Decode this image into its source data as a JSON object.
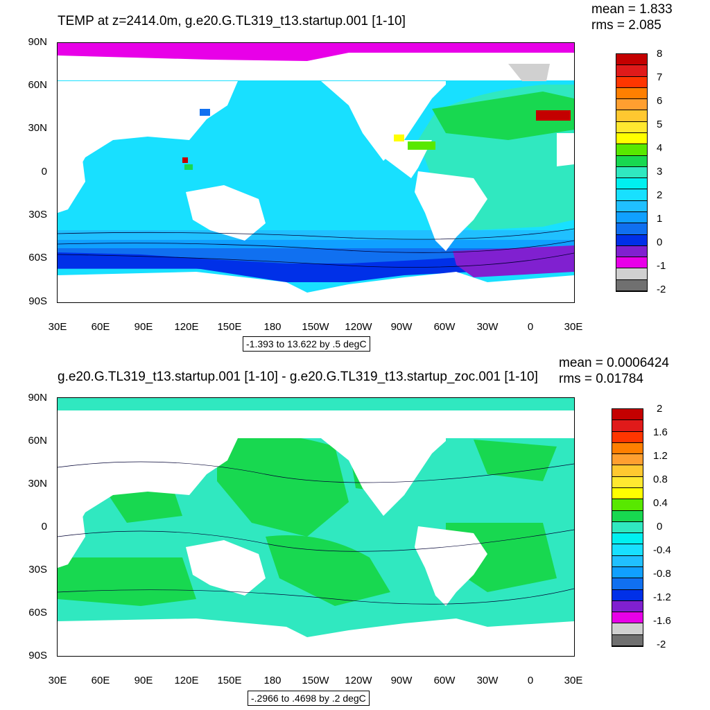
{
  "panel1": {
    "title": "TEMP at z=2414.0m, g.e20.G.TL319_t13.startup.001 [1-10]",
    "mean_label": "mean = 1.833",
    "rms_label": "rms = 2.085",
    "range_label": "-1.393 to 13.622 by .5 degC",
    "colorbar_labels": [
      "8",
      "7",
      "6",
      "5",
      "4",
      "3",
      "2",
      "1",
      "0",
      "-1",
      "-2"
    ]
  },
  "panel2": {
    "title": "g.e20.G.TL319_t13.startup.001 [1-10] - g.e20.G.TL319_t13.startup_zoc.001 [1-10]",
    "mean_label": "mean = 0.0006424",
    "rms_label": "rms = 0.01784",
    "range_label": "-.2966 to .4698 by .2 degC",
    "colorbar_labels": [
      "2",
      "1.6",
      "1.2",
      "0.8",
      "0.4",
      "0",
      "-0.4",
      "-0.8",
      "-1.2",
      "-1.6",
      "-2"
    ]
  },
  "axes": {
    "lat_labels": [
      "90N",
      "60N",
      "30N",
      "0",
      "30S",
      "60S",
      "90S"
    ],
    "lon_labels": [
      "30E",
      "60E",
      "90E",
      "120E",
      "150E",
      "180",
      "150W",
      "120W",
      "90W",
      "60W",
      "30W",
      "0",
      "30E"
    ]
  },
  "colors": {
    "scale": [
      "#c40000",
      "#e01a1a",
      "#ff3600",
      "#ff7f00",
      "#ff9f30",
      "#ffc830",
      "#ffe830",
      "#ffff00",
      "#58e800",
      "#18d850",
      "#30e8c0",
      "#00f0f0",
      "#18e0ff",
      "#20c0ff",
      "#10a0ff",
      "#1070f0",
      "#0030e8",
      "#8020d0",
      "#e800e8",
      "#d0d0d0",
      "#707070"
    ],
    "land": "#ffffff"
  }
}
